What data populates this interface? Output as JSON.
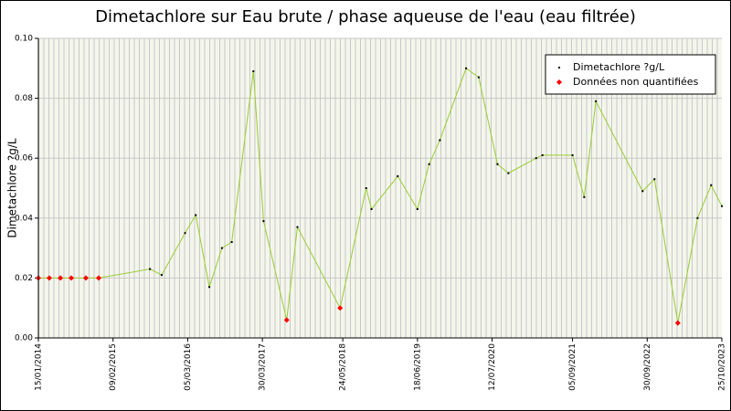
{
  "chart_data": {
    "type": "line",
    "title": "Dimetachlore sur Eau brute / phase aqueuse de l'eau (eau filtrée)",
    "y_label": "Dimetachlore ?g/L",
    "xlim": [
      "15/01/2014",
      "25/10/2023"
    ],
    "xticks": [
      "15/01/2014",
      "09/02/2015",
      "05/03/2016",
      "30/03/2017",
      "24/05/2018",
      "18/06/2019",
      "12/07/2020",
      "05/09/2021",
      "30/09/2022",
      "25/10/2023"
    ],
    "ylim": [
      0,
      0.1
    ],
    "yticks": [
      {
        "value": 0,
        "label": "0.00"
      },
      {
        "value": 0.02,
        "label": "0.02"
      },
      {
        "value": 0.04,
        "label": "0.04"
      },
      {
        "value": 0.06,
        "label": "0.06"
      },
      {
        "value": 0.08,
        "label": "0.08"
      },
      {
        "value": 0.1,
        "label": "0.10"
      }
    ],
    "grid": true,
    "legend": "top-right",
    "series": [
      {
        "name": "Dimetachlore ?g/L",
        "color": "#99cc33",
        "marker_color": "#000000",
        "line": true,
        "x": [
          "15/01/2014",
          "13/03/2014",
          "10/05/2014",
          "06/07/2014",
          "20/09/2014",
          "26/11/2014",
          "21/08/2015",
          "21/10/2015",
          "20/02/2016",
          "16/04/2016",
          "26/06/2016",
          "31/08/2016",
          "21/10/2016",
          "11/02/2017",
          "05/04/2017",
          "04/08/2017",
          "29/09/2017",
          "10/05/2018",
          "23/09/2018",
          "21/10/2018",
          "07/03/2019",
          "18/06/2019",
          "18/08/2019",
          "13/10/2019",
          "27/02/2020",
          "03/05/2020",
          "09/08/2020",
          "05/10/2020",
          "27/02/2021",
          "01/04/2021",
          "05/09/2021",
          "05/11/2021",
          "05/01/2022",
          "06/09/2022",
          "07/11/2022",
          "09/03/2023",
          "20/06/2023",
          "30/08/2023",
          "25/10/2023"
        ],
        "values": [
          0.02,
          0.02,
          0.02,
          0.02,
          0.02,
          0.02,
          0.023,
          0.021,
          0.035,
          0.041,
          0.017,
          0.03,
          0.032,
          0.089,
          0.039,
          0.006,
          0.037,
          0.01,
          0.05,
          0.043,
          0.054,
          0.043,
          0.058,
          0.066,
          0.09,
          0.087,
          0.058,
          0.055,
          0.06,
          0.061,
          0.061,
          0.047,
          0.079,
          0.049,
          0.053,
          0.005,
          0.04,
          0.051,
          0.044
        ]
      },
      {
        "name": "Données non quantifiées",
        "color": "#ff0000",
        "marker_color": "#ff0000",
        "line": false,
        "x": [
          "15/01/2014",
          "13/03/2014",
          "10/05/2014",
          "06/07/2014",
          "20/09/2014",
          "26/11/2014",
          "04/08/2017",
          "10/05/2018",
          "09/03/2023"
        ],
        "values": [
          0.02,
          0.02,
          0.02,
          0.02,
          0.02,
          0.02,
          0.006,
          0.01,
          0.005
        ]
      }
    ]
  }
}
